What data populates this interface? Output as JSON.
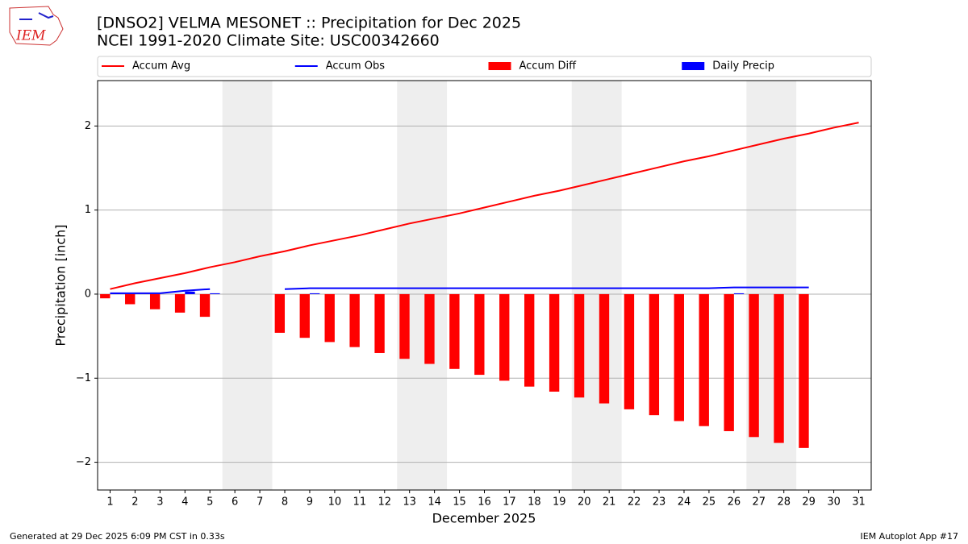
{
  "logo": "IEM",
  "footer": {
    "left": "Generated at 29 Dec 2025 6:09 PM CST in 0.33s",
    "right": "IEM Autoplot App #17"
  },
  "chart_data": {
    "type": "combo",
    "title": "[DNSO2] VELMA MESONET :: Precipitation for Dec 2025",
    "subtitle": "NCEI 1991-2020 Climate Site: USC00342660",
    "x_label": "December 2025",
    "y_label": "Precipitation [inch]",
    "x": [
      1,
      2,
      3,
      4,
      5,
      6,
      7,
      8,
      9,
      10,
      11,
      12,
      13,
      14,
      15,
      16,
      17,
      18,
      19,
      20,
      21,
      22,
      23,
      24,
      25,
      26,
      27,
      28,
      29,
      30,
      31
    ],
    "xlim": [
      0.5,
      31.5
    ],
    "xticks": [
      1,
      2,
      3,
      4,
      5,
      6,
      7,
      8,
      9,
      10,
      11,
      12,
      13,
      14,
      15,
      16,
      17,
      18,
      19,
      20,
      21,
      22,
      23,
      24,
      25,
      26,
      27,
      28,
      29,
      30,
      31
    ],
    "ylim": [
      -2.33,
      2.54
    ],
    "yticks": [
      {
        "value": -2,
        "label": "−2"
      },
      {
        "value": -1,
        "label": "−1"
      },
      0,
      1,
      2
    ],
    "grid": true,
    "shaded_x": [
      [
        5.5,
        7.5
      ],
      [
        12.5,
        14.5
      ],
      [
        19.5,
        21.5
      ],
      [
        26.5,
        28.5
      ]
    ],
    "shade_color": "#eeeeee",
    "series": [
      {
        "name": "Accum Avg",
        "kind": "line",
        "color": "#ff0000",
        "values": [
          0.06,
          0.13,
          0.19,
          0.25,
          0.32,
          0.38,
          0.45,
          0.51,
          0.58,
          0.64,
          0.7,
          0.77,
          0.84,
          0.9,
          0.96,
          1.03,
          1.1,
          1.17,
          1.23,
          1.3,
          1.37,
          1.44,
          1.51,
          1.58,
          1.64,
          1.71,
          1.78,
          1.85,
          1.91,
          1.98,
          2.04
        ]
      },
      {
        "name": "Accum Obs",
        "kind": "line",
        "color": "#0000ff",
        "values": [
          0.01,
          0.01,
          0.01,
          0.04,
          0.06,
          null,
          null,
          0.06,
          0.07,
          0.07,
          0.07,
          0.07,
          0.07,
          0.07,
          0.07,
          0.07,
          0.07,
          0.07,
          0.07,
          0.07,
          0.07,
          0.07,
          0.07,
          0.07,
          0.07,
          0.08,
          0.08,
          0.08,
          0.08,
          null,
          null
        ]
      },
      {
        "name": "Accum Diff",
        "kind": "bar",
        "color": "#ff0000",
        "values": [
          -0.05,
          -0.12,
          -0.18,
          -0.22,
          -0.27,
          null,
          null,
          -0.46,
          -0.52,
          -0.57,
          -0.63,
          -0.7,
          -0.77,
          -0.83,
          -0.89,
          -0.96,
          -1.03,
          -1.1,
          -1.16,
          -1.23,
          -1.3,
          -1.37,
          -1.44,
          -1.51,
          -1.57,
          -1.63,
          -1.7,
          -1.77,
          -1.83,
          null,
          null
        ]
      },
      {
        "name": "Daily Precip",
        "kind": "bar",
        "color": "#0000ff",
        "values": [
          0.01,
          0,
          0,
          0.03,
          0.01,
          null,
          null,
          0,
          0.01,
          0,
          0,
          0,
          0,
          0,
          0,
          0,
          0,
          0,
          0,
          0,
          0,
          0,
          0,
          0,
          0,
          0.01,
          0,
          0,
          0,
          null,
          null
        ]
      }
    ]
  }
}
